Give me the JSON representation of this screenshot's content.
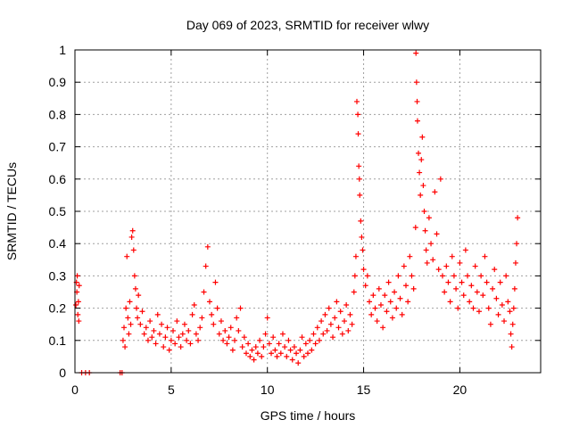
{
  "chart_data": {
    "type": "scatter",
    "title": "Day 069 of 2023, SRMTID for receiver wlwy",
    "xlabel": "GPS time / hours",
    "ylabel": "SRMTID / TECUs",
    "xlim": [
      0,
      24.2
    ],
    "ylim": [
      0,
      1
    ],
    "xticks": [
      0,
      5,
      10,
      15,
      20
    ],
    "xtick_labels": [
      "0",
      "5",
      "10",
      "15",
      "20"
    ],
    "yticks": [
      0,
      0.1,
      0.2,
      0.3,
      0.4,
      0.5,
      0.6,
      0.7,
      0.8,
      0.9,
      1
    ],
    "ytick_labels": [
      "0",
      "0.1",
      "0.2",
      "0.3",
      "0.4",
      "0.5",
      "0.6",
      "0.7",
      "0.8",
      "0.9",
      "1"
    ],
    "grid": true,
    "marker": "+",
    "color": "#ff0000",
    "series": [
      {
        "name": "SRMTID",
        "points": [
          [
            0.05,
            0.21
          ],
          [
            0.08,
            0.28
          ],
          [
            0.1,
            0.25
          ],
          [
            0.12,
            0.3
          ],
          [
            0.15,
            0.18
          ],
          [
            0.18,
            0.22
          ],
          [
            0.2,
            0.16
          ],
          [
            0.22,
            0.27
          ],
          [
            0.35,
            0.0
          ],
          [
            0.55,
            0.0
          ],
          [
            0.75,
            0.0
          ],
          [
            2.35,
            0.0
          ],
          [
            2.45,
            0.0
          ],
          [
            2.5,
            0.1
          ],
          [
            2.55,
            0.14
          ],
          [
            2.6,
            0.08
          ],
          [
            2.65,
            0.2
          ],
          [
            2.7,
            0.36
          ],
          [
            2.75,
            0.17
          ],
          [
            2.8,
            0.12
          ],
          [
            2.85,
            0.22
          ],
          [
            2.9,
            0.15
          ],
          [
            2.95,
            0.42
          ],
          [
            3.0,
            0.44
          ],
          [
            3.05,
            0.38
          ],
          [
            3.1,
            0.3
          ],
          [
            3.15,
            0.26
          ],
          [
            3.2,
            0.2
          ],
          [
            3.25,
            0.17
          ],
          [
            3.3,
            0.24
          ],
          [
            3.4,
            0.15
          ],
          [
            3.5,
            0.19
          ],
          [
            3.6,
            0.12
          ],
          [
            3.7,
            0.14
          ],
          [
            3.8,
            0.1
          ],
          [
            3.9,
            0.16
          ],
          [
            4.0,
            0.11
          ],
          [
            4.1,
            0.13
          ],
          [
            4.2,
            0.09
          ],
          [
            4.3,
            0.18
          ],
          [
            4.4,
            0.12
          ],
          [
            4.5,
            0.15
          ],
          [
            4.6,
            0.08
          ],
          [
            4.7,
            0.11
          ],
          [
            4.8,
            0.14
          ],
          [
            4.9,
            0.07
          ],
          [
            5.0,
            0.1
          ],
          [
            5.1,
            0.13
          ],
          [
            5.2,
            0.09
          ],
          [
            5.3,
            0.16
          ],
          [
            5.4,
            0.11
          ],
          [
            5.5,
            0.08
          ],
          [
            5.6,
            0.12
          ],
          [
            5.7,
            0.15
          ],
          [
            5.8,
            0.1
          ],
          [
            5.9,
            0.13
          ],
          [
            6.0,
            0.09
          ],
          [
            6.1,
            0.18
          ],
          [
            6.2,
            0.21
          ],
          [
            6.3,
            0.12
          ],
          [
            6.4,
            0.1
          ],
          [
            6.5,
            0.14
          ],
          [
            6.6,
            0.17
          ],
          [
            6.7,
            0.25
          ],
          [
            6.8,
            0.33
          ],
          [
            6.9,
            0.39
          ],
          [
            7.0,
            0.22
          ],
          [
            7.1,
            0.18
          ],
          [
            7.2,
            0.15
          ],
          [
            7.3,
            0.28
          ],
          [
            7.4,
            0.2
          ],
          [
            7.5,
            0.12
          ],
          [
            7.6,
            0.16
          ],
          [
            7.7,
            0.1
          ],
          [
            7.8,
            0.13
          ],
          [
            7.9,
            0.09
          ],
          [
            8.0,
            0.11
          ],
          [
            8.1,
            0.14
          ],
          [
            8.2,
            0.07
          ],
          [
            8.3,
            0.1
          ],
          [
            8.4,
            0.17
          ],
          [
            8.5,
            0.13
          ],
          [
            8.6,
            0.2
          ],
          [
            8.7,
            0.08
          ],
          [
            8.8,
            0.11
          ],
          [
            8.9,
            0.06
          ],
          [
            9.0,
            0.09
          ],
          [
            9.1,
            0.05
          ],
          [
            9.2,
            0.07
          ],
          [
            9.3,
            0.04
          ],
          [
            9.4,
            0.08
          ],
          [
            9.5,
            0.06
          ],
          [
            9.6,
            0.1
          ],
          [
            9.7,
            0.05
          ],
          [
            9.8,
            0.08
          ],
          [
            9.9,
            0.12
          ],
          [
            10.0,
            0.17
          ],
          [
            10.1,
            0.09
          ],
          [
            10.2,
            0.06
          ],
          [
            10.3,
            0.11
          ],
          [
            10.4,
            0.07
          ],
          [
            10.5,
            0.05
          ],
          [
            10.6,
            0.09
          ],
          [
            10.7,
            0.06
          ],
          [
            10.8,
            0.12
          ],
          [
            10.9,
            0.08
          ],
          [
            11.0,
            0.05
          ],
          [
            11.1,
            0.1
          ],
          [
            11.2,
            0.07
          ],
          [
            11.3,
            0.04
          ],
          [
            11.4,
            0.08
          ],
          [
            11.5,
            0.06
          ],
          [
            11.6,
            0.03
          ],
          [
            11.7,
            0.07
          ],
          [
            11.8,
            0.11
          ],
          [
            11.9,
            0.05
          ],
          [
            12.0,
            0.09
          ],
          [
            12.1,
            0.06
          ],
          [
            12.2,
            0.1
          ],
          [
            12.3,
            0.07
          ],
          [
            12.4,
            0.12
          ],
          [
            12.5,
            0.09
          ],
          [
            12.6,
            0.14
          ],
          [
            12.7,
            0.1
          ],
          [
            12.8,
            0.16
          ],
          [
            12.9,
            0.12
          ],
          [
            13.0,
            0.18
          ],
          [
            13.1,
            0.13
          ],
          [
            13.2,
            0.2
          ],
          [
            13.3,
            0.15
          ],
          [
            13.4,
            0.11
          ],
          [
            13.5,
            0.17
          ],
          [
            13.6,
            0.22
          ],
          [
            13.7,
            0.14
          ],
          [
            13.8,
            0.19
          ],
          [
            13.9,
            0.12
          ],
          [
            14.0,
            0.16
          ],
          [
            14.1,
            0.21
          ],
          [
            14.2,
            0.13
          ],
          [
            14.3,
            0.18
          ],
          [
            14.4,
            0.15
          ],
          [
            14.5,
            0.25
          ],
          [
            14.55,
            0.3
          ],
          [
            14.6,
            0.36
          ],
          [
            14.65,
            0.84
          ],
          [
            14.7,
            0.8
          ],
          [
            14.72,
            0.74
          ],
          [
            14.75,
            0.64
          ],
          [
            14.78,
            0.6
          ],
          [
            14.8,
            0.55
          ],
          [
            14.85,
            0.47
          ],
          [
            14.9,
            0.42
          ],
          [
            14.95,
            0.38
          ],
          [
            15.0,
            0.32
          ],
          [
            15.1,
            0.27
          ],
          [
            15.2,
            0.3
          ],
          [
            15.3,
            0.22
          ],
          [
            15.4,
            0.18
          ],
          [
            15.5,
            0.24
          ],
          [
            15.6,
            0.2
          ],
          [
            15.7,
            0.16
          ],
          [
            15.8,
            0.26
          ],
          [
            15.9,
            0.21
          ],
          [
            16.0,
            0.14
          ],
          [
            16.1,
            0.24
          ],
          [
            16.2,
            0.19
          ],
          [
            16.3,
            0.28
          ],
          [
            16.4,
            0.22
          ],
          [
            16.5,
            0.17
          ],
          [
            16.6,
            0.25
          ],
          [
            16.7,
            0.2
          ],
          [
            16.8,
            0.3
          ],
          [
            16.9,
            0.23
          ],
          [
            17.0,
            0.18
          ],
          [
            17.1,
            0.33
          ],
          [
            17.2,
            0.27
          ],
          [
            17.3,
            0.22
          ],
          [
            17.4,
            0.36
          ],
          [
            17.5,
            0.3
          ],
          [
            17.6,
            0.26
          ],
          [
            17.7,
            0.45
          ],
          [
            17.72,
            0.99
          ],
          [
            17.75,
            0.9
          ],
          [
            17.78,
            0.84
          ],
          [
            17.8,
            0.78
          ],
          [
            17.85,
            0.68
          ],
          [
            17.9,
            0.62
          ],
          [
            17.95,
            0.55
          ],
          [
            18.0,
            0.66
          ],
          [
            18.05,
            0.73
          ],
          [
            18.1,
            0.58
          ],
          [
            18.15,
            0.5
          ],
          [
            18.2,
            0.44
          ],
          [
            18.25,
            0.38
          ],
          [
            18.3,
            0.34
          ],
          [
            18.4,
            0.48
          ],
          [
            18.5,
            0.4
          ],
          [
            18.6,
            0.35
          ],
          [
            18.7,
            0.56
          ],
          [
            18.8,
            0.43
          ],
          [
            18.9,
            0.32
          ],
          [
            19.0,
            0.6
          ],
          [
            19.1,
            0.3
          ],
          [
            19.2,
            0.25
          ],
          [
            19.3,
            0.33
          ],
          [
            19.4,
            0.28
          ],
          [
            19.5,
            0.22
          ],
          [
            19.6,
            0.36
          ],
          [
            19.7,
            0.3
          ],
          [
            19.8,
            0.26
          ],
          [
            19.9,
            0.2
          ],
          [
            20.0,
            0.34
          ],
          [
            20.1,
            0.28
          ],
          [
            20.2,
            0.24
          ],
          [
            20.3,
            0.38
          ],
          [
            20.4,
            0.3
          ],
          [
            20.5,
            0.22
          ],
          [
            20.6,
            0.27
          ],
          [
            20.7,
            0.2
          ],
          [
            20.8,
            0.33
          ],
          [
            20.9,
            0.25
          ],
          [
            21.0,
            0.19
          ],
          [
            21.1,
            0.3
          ],
          [
            21.2,
            0.24
          ],
          [
            21.3,
            0.36
          ],
          [
            21.4,
            0.28
          ],
          [
            21.5,
            0.2
          ],
          [
            21.6,
            0.15
          ],
          [
            21.7,
            0.26
          ],
          [
            21.8,
            0.32
          ],
          [
            21.9,
            0.23
          ],
          [
            22.0,
            0.18
          ],
          [
            22.1,
            0.28
          ],
          [
            22.2,
            0.21
          ],
          [
            22.3,
            0.16
          ],
          [
            22.4,
            0.3
          ],
          [
            22.5,
            0.22
          ],
          [
            22.6,
            0.19
          ],
          [
            22.65,
            0.12
          ],
          [
            22.7,
            0.08
          ],
          [
            22.75,
            0.15
          ],
          [
            22.8,
            0.2
          ],
          [
            22.85,
            0.26
          ],
          [
            22.9,
            0.34
          ],
          [
            22.95,
            0.4
          ],
          [
            23.0,
            0.48
          ]
        ]
      }
    ]
  }
}
